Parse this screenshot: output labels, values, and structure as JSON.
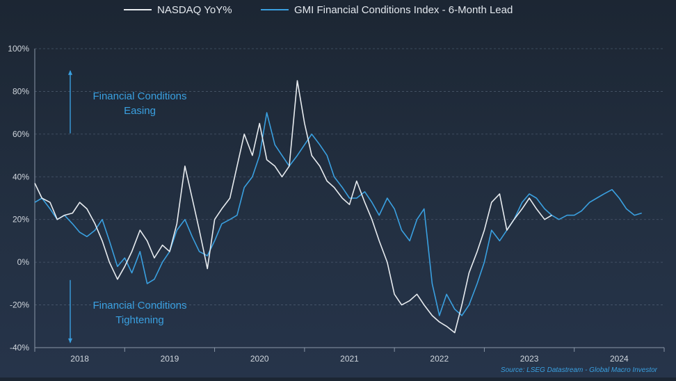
{
  "chart_data": {
    "type": "line",
    "title": "",
    "xlabel": "",
    "ylabel": "",
    "ylim": [
      -40,
      100
    ],
    "yticks": [
      -40,
      -20,
      0,
      20,
      40,
      60,
      80,
      100
    ],
    "ytick_labels": [
      "-40%",
      "-20%",
      "0%",
      "20%",
      "40%",
      "60%",
      "80%",
      "100%"
    ],
    "xlim": [
      2017.5,
      2024.5
    ],
    "xticks": [
      2018,
      2019,
      2020,
      2021,
      2022,
      2023,
      2024
    ],
    "xtick_labels": [
      "2018",
      "2019",
      "2020",
      "2021",
      "2022",
      "2023",
      "2024"
    ],
    "grid": "horizontal dashed",
    "legend_position": "top-center",
    "series": [
      {
        "name": "NASDAQ YoY%",
        "color": "#e8ecf0",
        "x": [
          2017.5,
          2017.58,
          2017.67,
          2017.75,
          2017.83,
          2017.92,
          2018.0,
          2018.08,
          2018.17,
          2018.25,
          2018.33,
          2018.42,
          2018.5,
          2018.58,
          2018.67,
          2018.75,
          2018.83,
          2018.92,
          2019.0,
          2019.08,
          2019.17,
          2019.25,
          2019.33,
          2019.42,
          2019.5,
          2019.58,
          2019.67,
          2019.75,
          2019.83,
          2019.92,
          2020.0,
          2020.08,
          2020.17,
          2020.25,
          2020.33,
          2020.42,
          2020.5,
          2020.58,
          2020.67,
          2020.75,
          2020.83,
          2020.92,
          2021.0,
          2021.08,
          2021.17,
          2021.25,
          2021.33,
          2021.42,
          2021.5,
          2021.58,
          2021.67,
          2021.75,
          2021.83,
          2021.92,
          2022.0,
          2022.08,
          2022.17,
          2022.25,
          2022.33,
          2022.42,
          2022.5,
          2022.58,
          2022.67,
          2022.75,
          2022.83,
          2022.92,
          2023.0,
          2023.08,
          2023.17,
          2023.25
        ],
        "values": [
          37,
          30,
          28,
          20,
          22,
          23,
          28,
          25,
          18,
          10,
          0,
          -8,
          -2,
          5,
          15,
          10,
          2,
          8,
          5,
          18,
          45,
          30,
          15,
          -3,
          20,
          25,
          30,
          45,
          60,
          50,
          65,
          48,
          45,
          40,
          45,
          85,
          65,
          50,
          45,
          38,
          35,
          30,
          27,
          38,
          28,
          20,
          10,
          0,
          -15,
          -20,
          -18,
          -15,
          -20,
          -25,
          -28,
          -30,
          -33,
          -20,
          -5,
          5,
          15,
          28,
          32,
          15,
          20,
          25,
          30,
          25,
          20,
          22
        ]
      },
      {
        "name": "GMI Financial Conditions Index - 6-Month Lead",
        "color": "#3aa0e0",
        "x": [
          2017.5,
          2017.58,
          2017.67,
          2017.75,
          2017.83,
          2017.92,
          2018.0,
          2018.08,
          2018.17,
          2018.25,
          2018.33,
          2018.42,
          2018.5,
          2018.58,
          2018.67,
          2018.75,
          2018.83,
          2018.92,
          2019.0,
          2019.08,
          2019.17,
          2019.25,
          2019.33,
          2019.42,
          2019.5,
          2019.58,
          2019.67,
          2019.75,
          2019.83,
          2019.92,
          2020.0,
          2020.08,
          2020.17,
          2020.25,
          2020.33,
          2020.42,
          2020.5,
          2020.58,
          2020.67,
          2020.75,
          2020.83,
          2020.92,
          2021.0,
          2021.08,
          2021.17,
          2021.25,
          2021.33,
          2021.42,
          2021.5,
          2021.58,
          2021.67,
          2021.75,
          2021.83,
          2021.92,
          2022.0,
          2022.08,
          2022.17,
          2022.25,
          2022.33,
          2022.42,
          2022.5,
          2022.58,
          2022.67,
          2022.75,
          2022.83,
          2022.92,
          2023.0,
          2023.08,
          2023.17,
          2023.25,
          2023.33,
          2023.42,
          2023.5,
          2023.58,
          2023.67,
          2023.75,
          2023.83,
          2023.92,
          2024.0,
          2024.08,
          2024.17,
          2024.25
        ],
        "values": [
          28,
          30,
          25,
          20,
          22,
          18,
          14,
          12,
          15,
          20,
          10,
          -2,
          2,
          -5,
          5,
          -10,
          -8,
          0,
          5,
          15,
          20,
          12,
          5,
          3,
          10,
          18,
          20,
          22,
          35,
          40,
          50,
          70,
          55,
          50,
          45,
          50,
          55,
          60,
          55,
          50,
          40,
          35,
          30,
          30,
          33,
          28,
          22,
          30,
          25,
          15,
          10,
          20,
          25,
          -10,
          -25,
          -15,
          -22,
          -25,
          -20,
          -10,
          0,
          15,
          10,
          15,
          20,
          28,
          32,
          30,
          25,
          22,
          20,
          22,
          22,
          24,
          28,
          30,
          32,
          34,
          30,
          25,
          22,
          23
        ]
      }
    ],
    "annotations": [
      {
        "text_line1": "Financial Conditions",
        "text_line2": "Easing",
        "arrow": "up",
        "y_center": 75
      },
      {
        "text_line1": "Financial Conditions",
        "text_line2": "Tightening",
        "arrow": "down",
        "y_center": -23
      }
    ],
    "source_text": "Source: LSEG Datastream - Global Macro Investor"
  }
}
